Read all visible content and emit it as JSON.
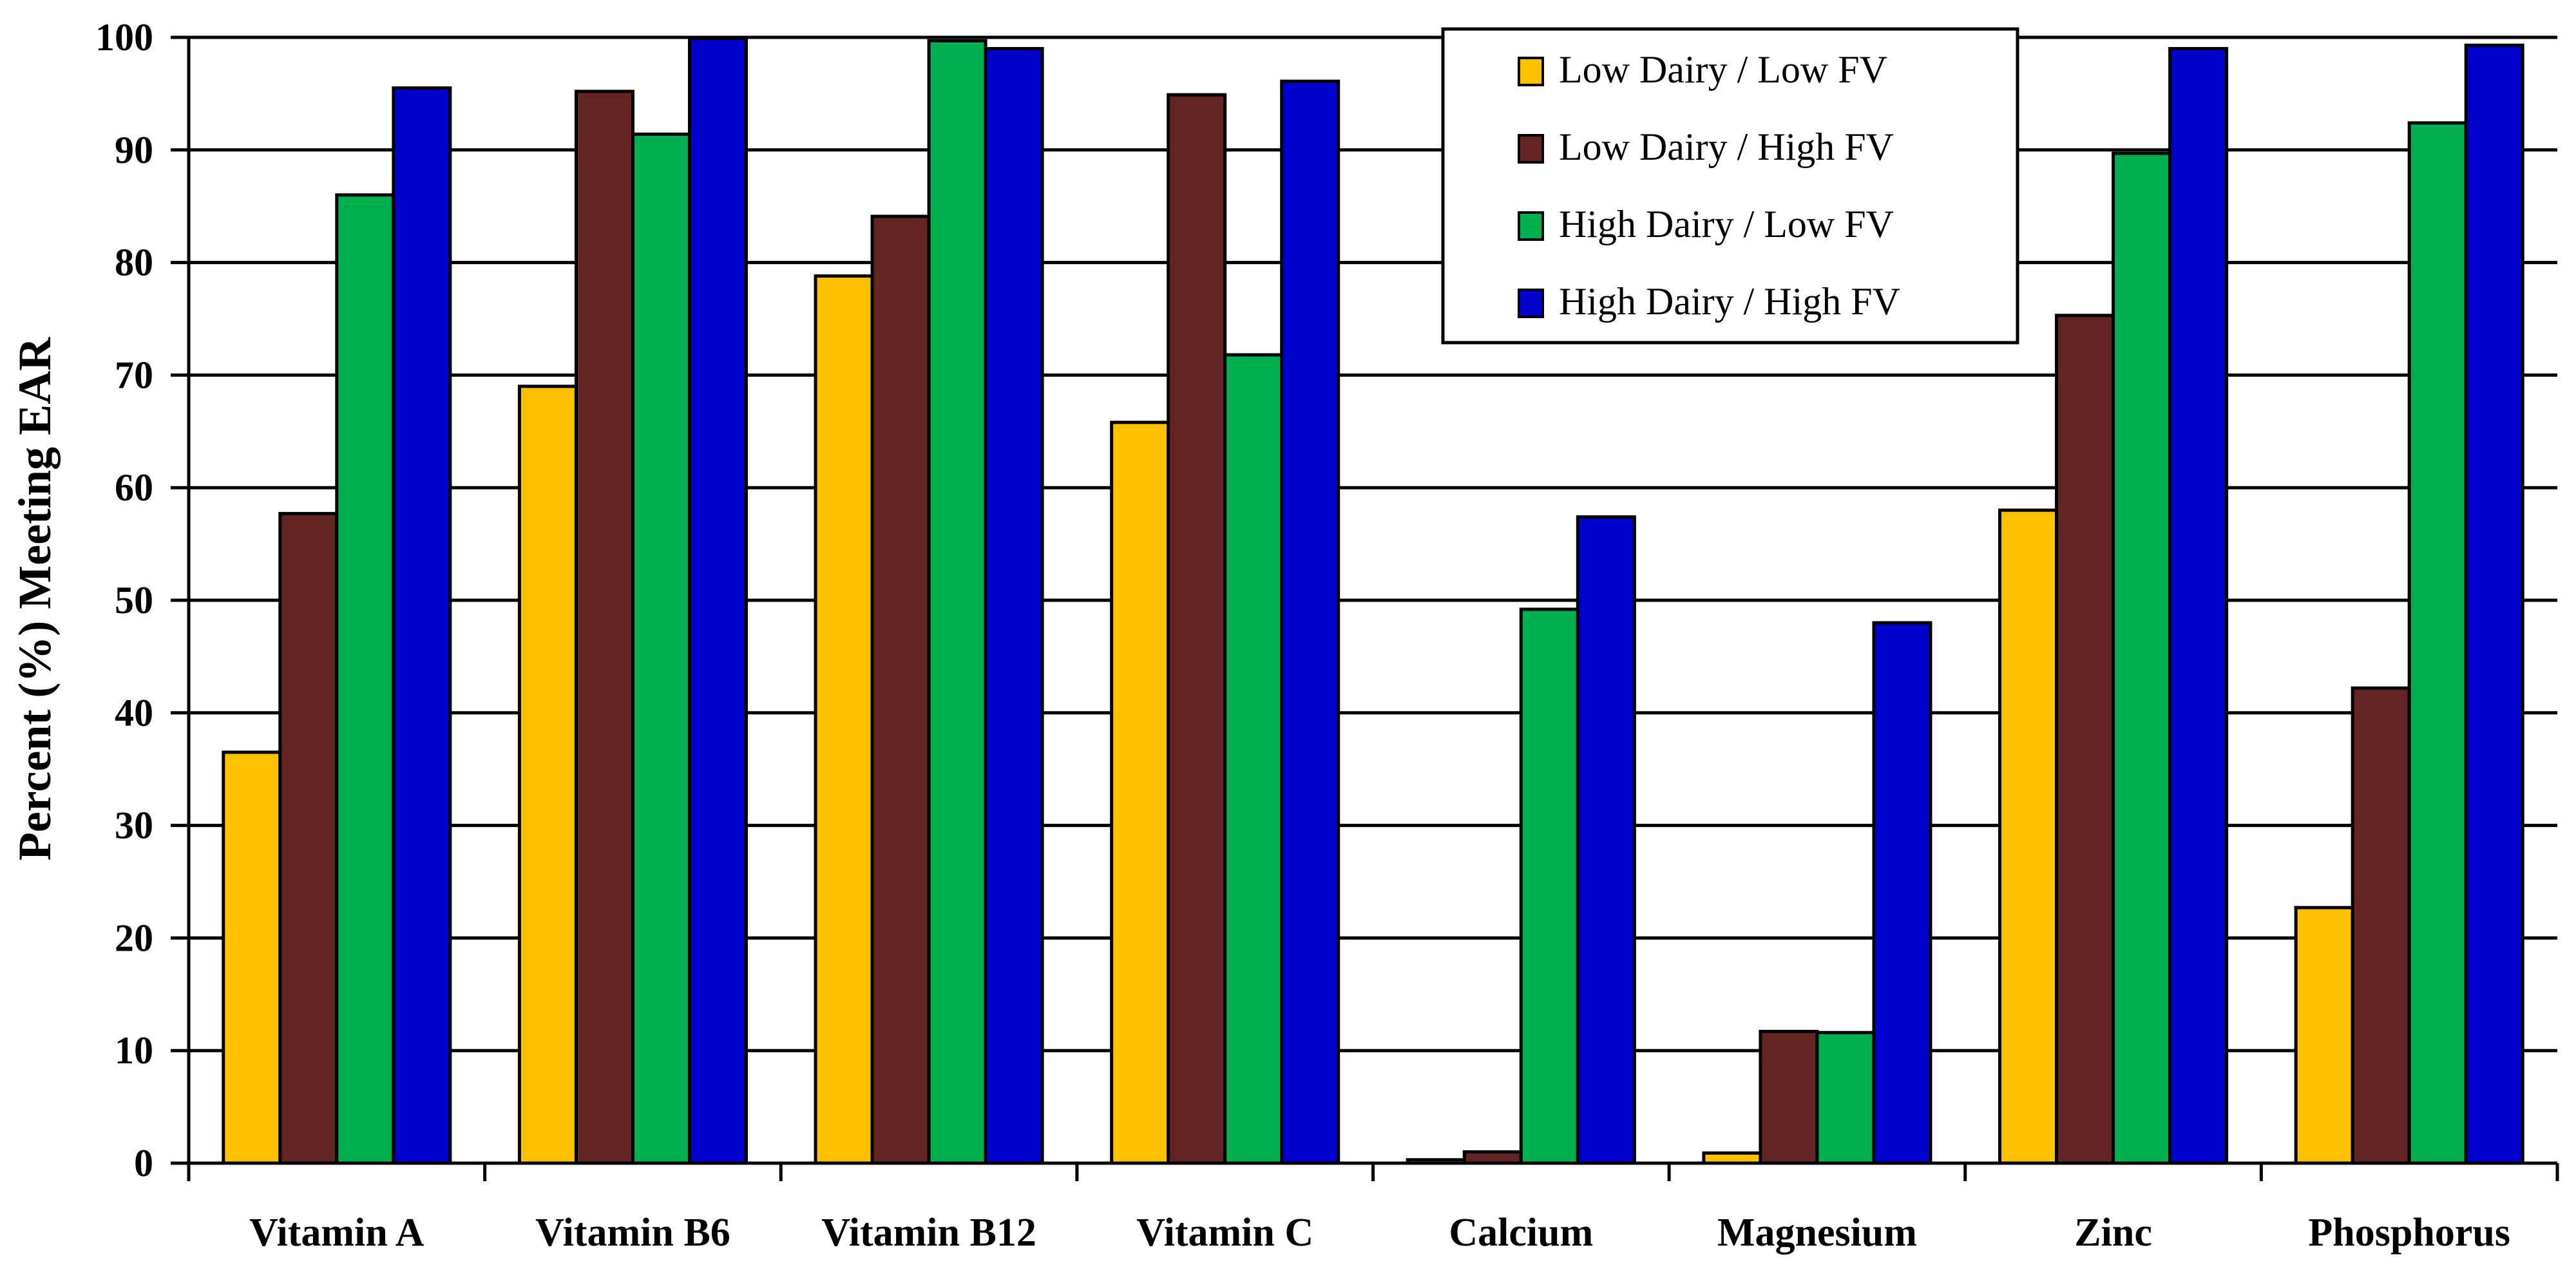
{
  "chart_data": {
    "type": "bar",
    "title": "",
    "xlabel": "",
    "ylabel": "Percent (%) Meeting EAR",
    "ylim": [
      0,
      100
    ],
    "yticks": [
      0,
      10,
      20,
      30,
      40,
      50,
      60,
      70,
      80,
      90,
      100
    ],
    "grid": true,
    "legend_position": "top-center",
    "categories": [
      "Vitamin A",
      "Vitamin B6",
      "Vitamin B12",
      "Vitamin C",
      "Calcium",
      "Magnesium",
      "Zinc",
      "Phosphorus"
    ],
    "series": [
      {
        "name": "Low Dairy / Low FV",
        "color": "#FFC000",
        "values": [
          36.5,
          69,
          78.8,
          65.8,
          0.3,
          0.9,
          58,
          22.7
        ]
      },
      {
        "name": "Low Dairy / High FV",
        "color": "#632523",
        "values": [
          57.7,
          95.2,
          84.1,
          94.9,
          1.0,
          11.7,
          75.3,
          42.2
        ]
      },
      {
        "name": "High Dairy / Low FV",
        "color": "#00B050",
        "values": [
          86,
          91.4,
          99.7,
          71.8,
          49.2,
          11.6,
          89.7,
          92.4
        ]
      },
      {
        "name": "High Dairy / High FV",
        "color": "#0000CC",
        "values": [
          95.5,
          99.9,
          99.0,
          96.1,
          57.4,
          48.0,
          99.0,
          99.3
        ]
      }
    ]
  }
}
